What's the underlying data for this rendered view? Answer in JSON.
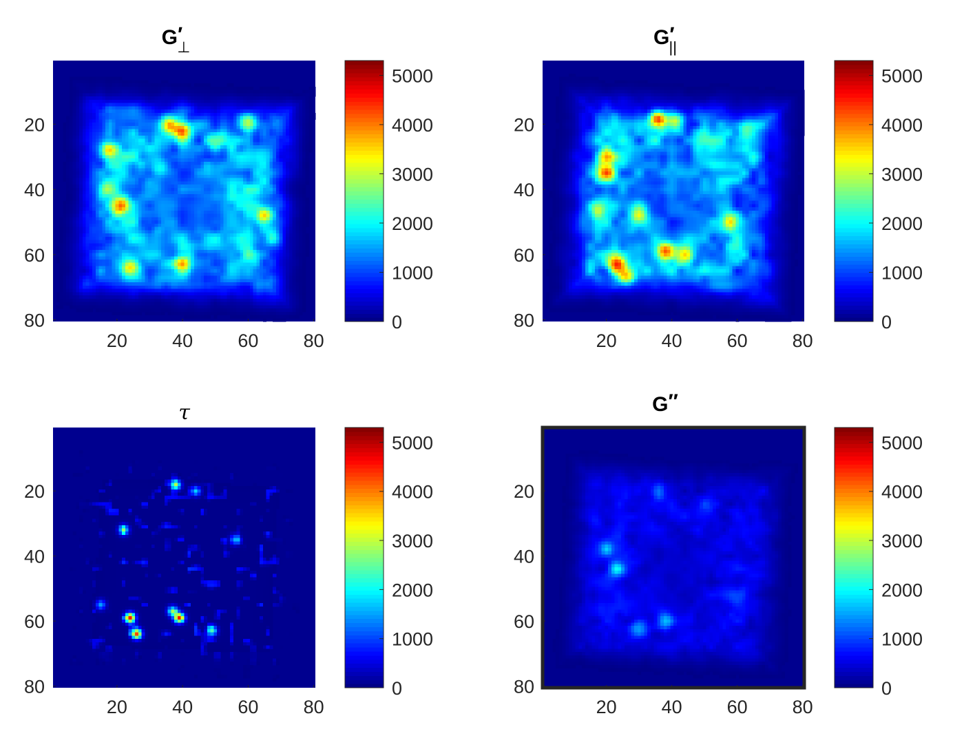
{
  "figure": {
    "colormap": "jet",
    "background_value_color": "#00008F"
  },
  "chart_data": [
    {
      "type": "heatmap",
      "title": "G′⊥",
      "title_main": "G",
      "title_sup": "′",
      "title_sub": "⊥",
      "grid_size": [
        80,
        80
      ],
      "xlim": [
        0.5,
        80.5
      ],
      "ylim": [
        0.5,
        80.5
      ],
      "x_ticks": [
        20,
        40,
        60,
        80
      ],
      "y_ticks": [
        20,
        40,
        60,
        80
      ],
      "clim": [
        0,
        5300
      ],
      "colorbar_ticks": [
        0,
        1000,
        2000,
        3000,
        4000,
        5000
      ],
      "grid": false,
      "description_hotspots": [
        {
          "x": 36,
          "y": 20,
          "v": 4500
        },
        {
          "x": 40,
          "y": 22,
          "v": 4300
        },
        {
          "x": 17,
          "y": 28,
          "v": 3800
        },
        {
          "x": 17,
          "y": 40,
          "v": 3500
        },
        {
          "x": 21,
          "y": 45,
          "v": 3800
        },
        {
          "x": 60,
          "y": 19,
          "v": 3600
        },
        {
          "x": 65,
          "y": 48,
          "v": 3800
        },
        {
          "x": 68,
          "y": 55,
          "v": 3200
        },
        {
          "x": 40,
          "y": 63,
          "v": 3200
        },
        {
          "x": 24,
          "y": 64,
          "v": 3300
        },
        {
          "x": 50,
          "y": 25,
          "v": 2800
        },
        {
          "x": 33,
          "y": 33,
          "v": 2500
        }
      ]
    },
    {
      "type": "heatmap",
      "title": "G′||",
      "title_main": "G",
      "title_sup": "′",
      "title_sub": "||",
      "grid_size": [
        80,
        80
      ],
      "xlim": [
        0.5,
        80.5
      ],
      "ylim": [
        0.5,
        80.5
      ],
      "x_ticks": [
        20,
        40,
        60,
        80
      ],
      "y_ticks": [
        20,
        40,
        60,
        80
      ],
      "clim": [
        0,
        5300
      ],
      "colorbar_ticks": [
        0,
        1000,
        2000,
        3000,
        4000,
        5000
      ],
      "grid": false,
      "description_hotspots": [
        {
          "x": 36,
          "y": 18,
          "v": 5200
        },
        {
          "x": 41,
          "y": 19,
          "v": 4200
        },
        {
          "x": 20,
          "y": 30,
          "v": 4000
        },
        {
          "x": 20,
          "y": 35,
          "v": 4100
        },
        {
          "x": 23,
          "y": 63,
          "v": 4300
        },
        {
          "x": 26,
          "y": 67,
          "v": 4000
        },
        {
          "x": 38,
          "y": 59,
          "v": 3900
        },
        {
          "x": 44,
          "y": 60,
          "v": 3500
        },
        {
          "x": 17,
          "y": 46,
          "v": 3000
        },
        {
          "x": 30,
          "y": 48,
          "v": 3200
        },
        {
          "x": 58,
          "y": 50,
          "v": 3000
        },
        {
          "x": 62,
          "y": 22,
          "v": 2600
        }
      ]
    },
    {
      "type": "heatmap",
      "title": "τ",
      "title_main": "τ",
      "title_sup": "",
      "title_sub": "",
      "grid_size": [
        80,
        80
      ],
      "xlim": [
        0.5,
        80.5
      ],
      "ylim": [
        0.5,
        80.5
      ],
      "x_ticks": [
        20,
        40,
        60,
        80
      ],
      "y_ticks": [
        20,
        40,
        60,
        80
      ],
      "clim": [
        0,
        5300
      ],
      "colorbar_ticks": [
        0,
        1000,
        2000,
        3000,
        4000,
        5000
      ],
      "grid": false,
      "description_hotspots": [
        {
          "x": 38,
          "y": 18,
          "v": 3500
        },
        {
          "x": 44,
          "y": 20,
          "v": 2000
        },
        {
          "x": 22,
          "y": 32,
          "v": 2300
        },
        {
          "x": 24,
          "y": 59,
          "v": 4500
        },
        {
          "x": 26,
          "y": 64,
          "v": 4600
        },
        {
          "x": 39,
          "y": 59,
          "v": 4200
        },
        {
          "x": 37,
          "y": 57,
          "v": 2500
        },
        {
          "x": 49,
          "y": 63,
          "v": 2300
        },
        {
          "x": 15,
          "y": 55,
          "v": 1800
        },
        {
          "x": 56,
          "y": 35,
          "v": 1500
        }
      ]
    },
    {
      "type": "heatmap",
      "title": "G″",
      "title_main": "G",
      "title_sup": "″",
      "title_sub": "",
      "grid_size": [
        80,
        80
      ],
      "xlim": [
        0.5,
        80.5
      ],
      "ylim": [
        0.5,
        80.5
      ],
      "x_ticks": [
        20,
        40,
        60,
        80
      ],
      "y_ticks": [
        20,
        40,
        60,
        80
      ],
      "clim": [
        0,
        5300
      ],
      "colorbar_ticks": [
        0,
        1000,
        2000,
        3000,
        4000,
        5000
      ],
      "grid": false,
      "description_hotspots": [
        {
          "x": 20,
          "y": 38,
          "v": 1900
        },
        {
          "x": 23,
          "y": 44,
          "v": 2100
        },
        {
          "x": 36,
          "y": 20,
          "v": 1500
        },
        {
          "x": 30,
          "y": 62,
          "v": 1700
        },
        {
          "x": 38,
          "y": 60,
          "v": 1800
        },
        {
          "x": 60,
          "y": 52,
          "v": 1200
        },
        {
          "x": 16,
          "y": 30,
          "v": 1000
        },
        {
          "x": 50,
          "y": 25,
          "v": 1100
        }
      ]
    }
  ]
}
